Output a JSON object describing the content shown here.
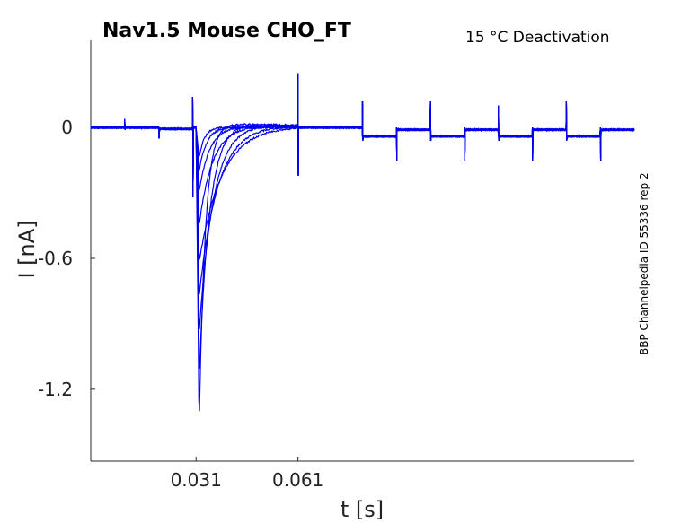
{
  "chart_data": {
    "type": "line",
    "title": "Nav1.5  Mouse  CHO_FT",
    "subtitle": "15 °C  Deactivation",
    "side_label": "BBP Channelpedia ID 55336 rep 2",
    "xlabel": "t [s]",
    "ylabel": "I [nA]",
    "x_ticks": [
      0.031,
      0.061
    ],
    "x_tick_labels": [
      "0.031",
      "0.061"
    ],
    "y_ticks": [
      0,
      -0.6,
      -1.2
    ],
    "y_tick_labels": [
      "0",
      "-0.6",
      "-1.2"
    ],
    "xlim": [
      0.0,
      0.16
    ],
    "ylim": [
      -1.53,
      0.4
    ],
    "grid": false,
    "series_color": "#0000ee",
    "series": [
      {
        "peak": -1.38,
        "tau": 0.0018,
        "tail": 0.025
      },
      {
        "peak": -1.15,
        "tau": 0.003,
        "tail": 0.028
      },
      {
        "peak": -0.95,
        "tau": 0.0042,
        "tail": 0.024
      },
      {
        "peak": -0.78,
        "tau": 0.0055,
        "tail": 0.02
      },
      {
        "peak": -0.62,
        "tau": 0.0068,
        "tail": 0.016
      },
      {
        "peak": -0.45,
        "tau": 0.004,
        "tail": 0.012
      },
      {
        "peak": -0.3,
        "tau": 0.003,
        "tail": 0.008
      },
      {
        "peak": -0.2,
        "tau": 0.0022,
        "tail": 0.004
      },
      {
        "peak": -0.14,
        "tau": 0.0015,
        "tail": 0.0
      }
    ]
  }
}
